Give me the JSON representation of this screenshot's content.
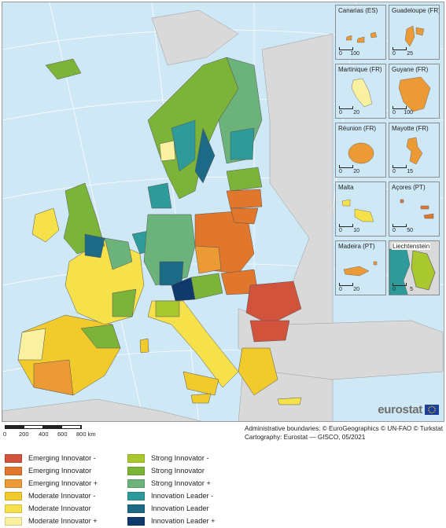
{
  "insets": [
    {
      "title": "Canarias (ES)",
      "scale": [
        "0",
        "100"
      ]
    },
    {
      "title": "Guadeloupe (FR)",
      "scale": [
        "0",
        "25"
      ]
    },
    {
      "title": "Martinique (FR)",
      "scale": [
        "0",
        "20"
      ]
    },
    {
      "title": "Guyane (FR)",
      "scale": [
        "0",
        "100"
      ]
    },
    {
      "title": "Réunion (FR)",
      "scale": [
        "0",
        "20"
      ]
    },
    {
      "title": "Mayotte (FR)",
      "scale": [
        "0",
        "15"
      ]
    },
    {
      "title": "Malta",
      "scale": [
        "0",
        "10"
      ]
    },
    {
      "title": "Açores (PT)",
      "scale": [
        "0",
        "50"
      ]
    },
    {
      "title": "Madeira (PT)",
      "scale": [
        "0",
        "20"
      ]
    },
    {
      "title": "Liechtenstein",
      "scale": [
        "0",
        "5"
      ]
    }
  ],
  "logo": {
    "text": "eurostat",
    "icon": "eu-flag-icon"
  },
  "scale_bar": {
    "labels": [
      "0",
      "200",
      "400",
      "600",
      "800 km"
    ]
  },
  "credits": {
    "line1": "Administrative boundaries: © EuroGeographics © UN-FAO © Turkstat",
    "line2": "Cartography: Eurostat — GISCO, 05/2021"
  },
  "legend": [
    {
      "label": "Emerging Innovator -",
      "color": "#d2533c"
    },
    {
      "label": "Strong Innovator -",
      "color": "#a9c82e"
    },
    {
      "label": "Emerging Innovator",
      "color": "#e0772c"
    },
    {
      "label": "Strong Innovator",
      "color": "#7cb43a"
    },
    {
      "label": "Emerging Innovator +",
      "color": "#eb9a36"
    },
    {
      "label": "Strong Innovator +",
      "color": "#6bb37a"
    },
    {
      "label": "Moderate Innovator -",
      "color": "#f1cb2c"
    },
    {
      "label": "Innovation Leader -",
      "color": "#2e9a9a"
    },
    {
      "label": "Moderate Innovator",
      "color": "#f6e14a"
    },
    {
      "label": "Innovation Leader",
      "color": "#1d6a86"
    },
    {
      "label": "Moderate Innovator +",
      "color": "#f9f0a0"
    },
    {
      "label": "Innovation Leader +",
      "color": "#103a6b"
    }
  ],
  "colors": {
    "sea": "#cfe8f6",
    "non_eu_land": "#d9d9d9",
    "border": "#555555"
  }
}
